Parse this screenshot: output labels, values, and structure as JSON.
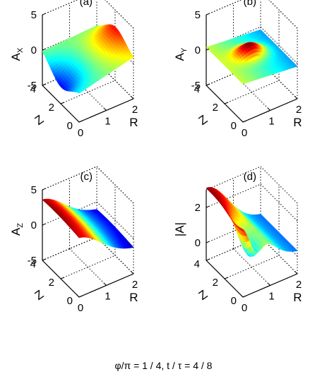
{
  "chart_data": [
    {
      "type": "surface",
      "panel_label": "(a)",
      "zlabel": "A",
      "zlabel_sub": "X",
      "xlabel": "R",
      "ylabel": "Z",
      "zticks": [
        "5",
        "0",
        "-5"
      ],
      "xticks": [
        "0",
        "1",
        "2"
      ],
      "yticks": [
        "0",
        "2",
        "4"
      ],
      "zlim": [
        -5,
        5
      ],
      "xlim": [
        0,
        2
      ],
      "ylim": [
        0,
        4
      ],
      "colormap": "jet",
      "grid": true,
      "surface_shape": "saddle-like twisted sheet, low near R=0 rising toward R=2"
    },
    {
      "type": "surface",
      "panel_label": "(b)",
      "zlabel": "A",
      "zlabel_sub": "Y",
      "xlabel": "R",
      "ylabel": "Z",
      "zticks": [
        "5",
        "0",
        "-5"
      ],
      "xticks": [
        "0",
        "1",
        "2"
      ],
      "yticks": [
        "0",
        "2",
        "4"
      ],
      "zlim": [
        -5,
        5
      ],
      "xlim": [
        0,
        2
      ],
      "ylim": [
        0,
        4
      ],
      "colormap": "jet",
      "grid": true,
      "surface_shape": "nearly flat sheet near 0 with a small peak at the centre"
    },
    {
      "type": "surface",
      "panel_label": "(c)",
      "zlabel": "A",
      "zlabel_sub": "Z",
      "xlabel": "R",
      "ylabel": "Z",
      "zticks": [
        "5",
        "0",
        "-5"
      ],
      "xticks": [
        "0",
        "1",
        "2"
      ],
      "yticks": [
        "0",
        "2",
        "4"
      ],
      "zlim": [
        -5,
        5
      ],
      "xlim": [
        0,
        2
      ],
      "ylim": [
        0,
        4
      ],
      "colormap": "jet",
      "grid": true,
      "surface_shape": "ridge high near R=0 decaying toward R=2"
    },
    {
      "type": "surface",
      "panel_label": "(d)",
      "zlabel": "|A|",
      "zlabel_sub": "",
      "xlabel": "R",
      "ylabel": "Z",
      "zticks": [
        "2",
        "0"
      ],
      "xticks": [
        "0",
        "1",
        "2"
      ],
      "yticks": [
        "0",
        "2",
        "4"
      ],
      "zlim": [
        -1,
        3
      ],
      "xlim": [
        0,
        2
      ],
      "ylim": [
        0,
        4
      ],
      "colormap": "jet",
      "grid": true,
      "surface_shape": "ridge high near R=0 with a dip near R=0.5 low Z"
    }
  ],
  "footer": {
    "phi": "φ",
    "phi_rest": "/π = 1 / 4, t / ",
    "tau": "τ",
    "tau_rest": " = 4 / 8"
  }
}
